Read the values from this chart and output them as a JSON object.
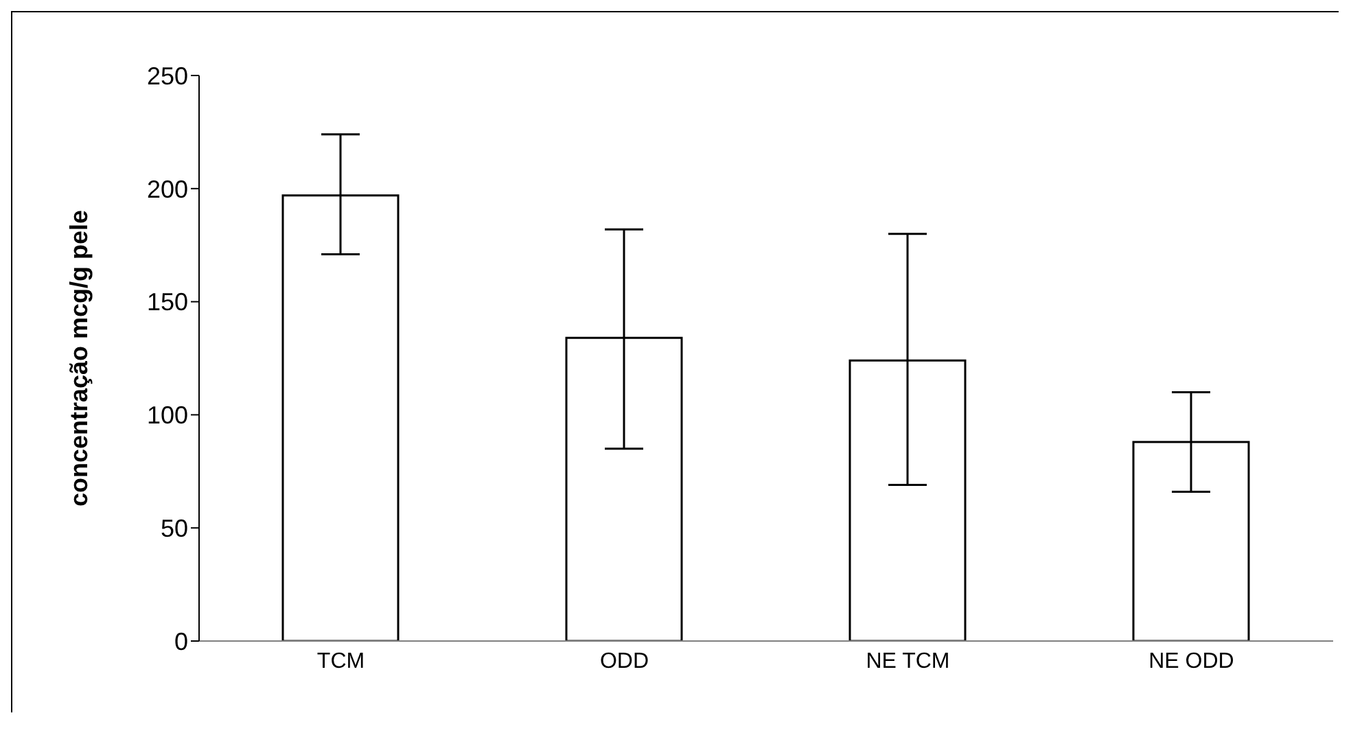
{
  "chart_data": {
    "type": "bar",
    "ylabel": "concentração mcg/g pele",
    "categories": [
      "TCM",
      "ODD",
      "NE TCM",
      "NE ODD"
    ],
    "values": [
      197,
      134,
      124,
      88
    ],
    "errors": [
      [
        171,
        224
      ],
      [
        85,
        182
      ],
      [
        69,
        180
      ],
      [
        66,
        110
      ]
    ],
    "color": "#ffffff",
    "ylim": [
      0,
      250
    ],
    "yticks": [
      0,
      50,
      100,
      150,
      200,
      250
    ],
    "grid": false,
    "legend": false
  }
}
